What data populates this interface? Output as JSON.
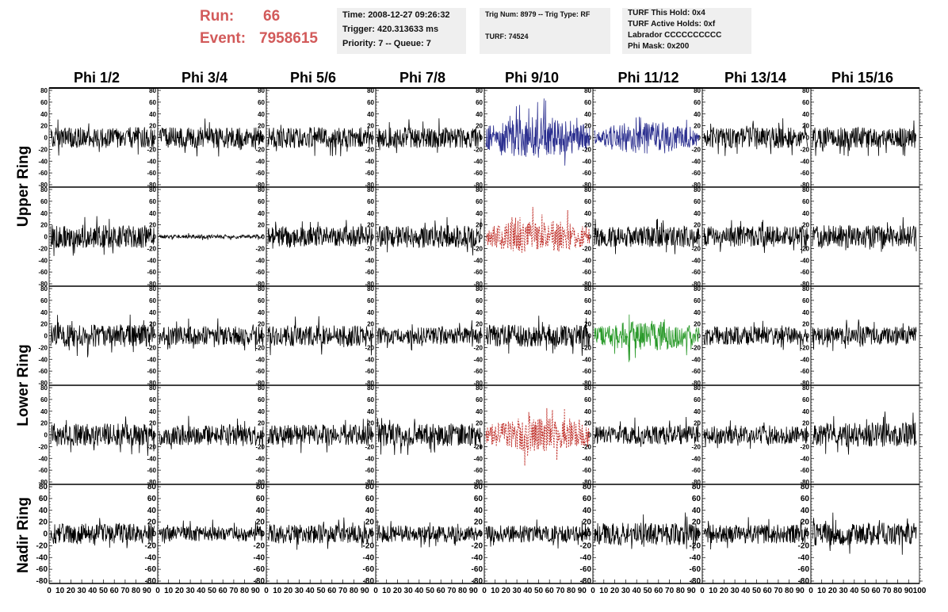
{
  "header": {
    "run_label": "Run:",
    "run_value": "66",
    "event_label": "Event:",
    "event_value": "7958615",
    "time": "Time: 2008-12-27 09:26:32",
    "trigger": "Trigger: 420.313633 ms",
    "priority": "Priority: 7 -- Queue: 7",
    "trig_num": "Trig Num: 8979 -- Trig Type: RF",
    "turf": "TURF: 74524",
    "turf_this_hold": "TURF This Hold: 0x4",
    "turf_active_holds": "TURF Active Holds: 0xf",
    "labrador": "Labrador CCCCCCCCCC",
    "phi_mask": "Phi Mask: 0x200"
  },
  "columns": [
    "Phi 1/2",
    "Phi 3/4",
    "Phi 5/6",
    "Phi 7/8",
    "Phi 9/10",
    "Phi 11/12",
    "Phi 13/14",
    "Phi 15/16"
  ],
  "rings": [
    "Upper Ring",
    "Lower Ring",
    "Nadir Ring"
  ],
  "colors": {
    "trace": "#000000",
    "upper_highlight": "#2b2f8f",
    "lower_highlight": "#2a9a2a",
    "triggered": "#c0302a",
    "header_red": "#d25a5a",
    "info_bg": "#efefef"
  },
  "chart_data": {
    "type": "line",
    "title": "",
    "xlabel": "",
    "ylabel": "",
    "xlim": [
      0,
      100
    ],
    "ylim": [
      -80,
      80
    ],
    "y_ticks": [
      -80,
      -60,
      -40,
      -20,
      0,
      20,
      40,
      60,
      80
    ],
    "y_tick_labels": [
      "-80",
      "-60",
      "-40",
      "-20",
      "0",
      "20",
      "40",
      "60",
      "80"
    ],
    "x_tick_labels": [
      "0",
      "10",
      "20",
      "30",
      "40",
      "50",
      "60",
      "70",
      "80",
      "90",
      "100"
    ],
    "samples_per_trace": 260,
    "rows": [
      {
        "ring": "Upper Ring",
        "amplitudes": [
          11,
          11,
          11,
          11,
          22,
          17,
          11,
          11
        ],
        "styles": [
          "solid",
          "solid",
          "solid",
          "solid",
          "upper",
          "upper",
          "solid",
          "solid"
        ]
      },
      {
        "ring": "Upper Ring",
        "amplitudes": [
          12,
          2,
          11,
          12,
          18,
          11,
          11,
          12
        ],
        "styles": [
          "solid",
          "solid",
          "solid",
          "solid",
          "triggered",
          "solid",
          "solid",
          "solid"
        ]
      },
      {
        "ring": "Lower Ring",
        "amplitudes": [
          12,
          10,
          11,
          9,
          12,
          16,
          10,
          10
        ],
        "styles": [
          "solid",
          "solid",
          "solid",
          "solid",
          "solid",
          "lower",
          "solid",
          "solid"
        ]
      },
      {
        "ring": "Lower Ring",
        "amplitudes": [
          12,
          11,
          11,
          12,
          18,
          10,
          10,
          13
        ],
        "styles": [
          "solid",
          "solid",
          "solid",
          "solid",
          "triggered",
          "solid",
          "solid",
          "solid"
        ]
      },
      {
        "ring": "Nadir Ring",
        "amplitudes": [
          11,
          8,
          10,
          9,
          9,
          12,
          10,
          12
        ],
        "styles": [
          "solid",
          "solid",
          "solid",
          "solid",
          "solid",
          "solid",
          "solid",
          "solid"
        ]
      }
    ]
  }
}
